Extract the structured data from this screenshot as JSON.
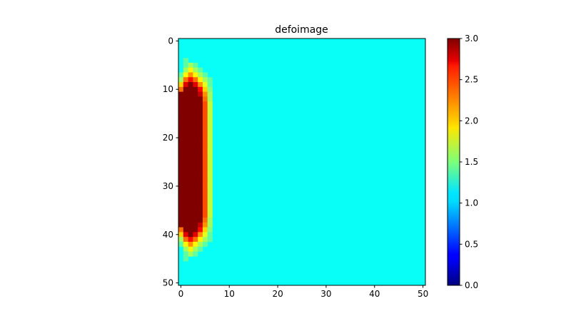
{
  "chart_data": {
    "type": "heatmap",
    "title": "defoimage",
    "xlabel": "",
    "ylabel": "",
    "rows": 51,
    "cols": 51,
    "colormap": "jet",
    "vmin": 0.0,
    "vmax": 3.0,
    "background_value": 1.15,
    "x_ticks": [
      "0",
      "10",
      "20",
      "30",
      "40",
      "50"
    ],
    "y_ticks": [
      "0",
      "10",
      "20",
      "30",
      "40",
      "50"
    ],
    "colorbar_ticks": [
      "0.0",
      "0.5",
      "1.0",
      "1.5",
      "2.0",
      "2.5",
      "3.0"
    ],
    "anomaly_rows": [
      {
        "row": 4,
        "values": [
          1.15,
          1.4,
          1.15
        ]
      },
      {
        "row": 5,
        "values": [
          1.15,
          1.4,
          1.6,
          1.4
        ]
      },
      {
        "row": 6,
        "values": [
          1.15,
          1.6,
          1.9,
          1.6,
          1.4
        ]
      },
      {
        "row": 7,
        "values": [
          1.4,
          1.9,
          2.2,
          1.9,
          1.6,
          1.4
        ]
      },
      {
        "row": 8,
        "values": [
          1.6,
          2.3,
          2.6,
          2.3,
          1.9,
          1.6,
          1.4
        ]
      },
      {
        "row": 9,
        "values": [
          2.0,
          2.7,
          3.0,
          2.7,
          2.2,
          1.8,
          1.4
        ]
      },
      {
        "row": 10,
        "values": [
          2.3,
          3.0,
          3.0,
          3.0,
          2.6,
          2.0,
          1.5
        ]
      },
      {
        "row": 11,
        "values": [
          3.0,
          3.0,
          3.0,
          3.0,
          2.8,
          2.2,
          1.6
        ]
      },
      {
        "row": 12,
        "values": [
          3.0,
          3.0,
          3.0,
          3.0,
          3.0,
          2.3,
          1.6
        ]
      },
      {
        "row": 13,
        "values": [
          3.0,
          3.0,
          3.0,
          3.0,
          3.0,
          2.4,
          1.7
        ]
      },
      {
        "row": 14,
        "values": [
          3.0,
          3.0,
          3.0,
          3.0,
          3.0,
          2.4,
          1.7
        ]
      },
      {
        "row": 15,
        "values": [
          3.0,
          3.0,
          3.0,
          3.0,
          3.0,
          2.4,
          1.7
        ]
      },
      {
        "row": 16,
        "values": [
          3.0,
          3.0,
          3.0,
          3.0,
          3.0,
          2.4,
          1.7
        ]
      },
      {
        "row": 17,
        "values": [
          3.0,
          3.0,
          3.0,
          3.0,
          3.0,
          2.4,
          1.7
        ]
      },
      {
        "row": 18,
        "values": [
          3.0,
          3.0,
          3.0,
          3.0,
          3.0,
          2.4,
          1.7
        ]
      },
      {
        "row": 19,
        "values": [
          3.0,
          3.0,
          3.0,
          3.0,
          3.0,
          2.4,
          1.7
        ]
      },
      {
        "row": 20,
        "values": [
          3.0,
          3.0,
          3.0,
          3.0,
          3.0,
          2.4,
          1.7
        ]
      },
      {
        "row": 21,
        "values": [
          3.0,
          3.0,
          3.0,
          3.0,
          3.0,
          2.4,
          1.7
        ]
      },
      {
        "row": 22,
        "values": [
          3.0,
          3.0,
          3.0,
          3.0,
          3.0,
          2.4,
          1.7
        ]
      },
      {
        "row": 23,
        "values": [
          3.0,
          3.0,
          3.0,
          3.0,
          3.0,
          2.4,
          1.7
        ]
      },
      {
        "row": 24,
        "values": [
          3.0,
          3.0,
          3.0,
          3.0,
          3.0,
          2.4,
          1.7
        ]
      },
      {
        "row": 25,
        "values": [
          3.0,
          3.0,
          3.0,
          3.0,
          3.0,
          2.4,
          1.7
        ]
      },
      {
        "row": 26,
        "values": [
          3.0,
          3.0,
          3.0,
          3.0,
          3.0,
          2.4,
          1.7
        ]
      },
      {
        "row": 27,
        "values": [
          3.0,
          3.0,
          3.0,
          3.0,
          3.0,
          2.4,
          1.7
        ]
      },
      {
        "row": 28,
        "values": [
          3.0,
          3.0,
          3.0,
          3.0,
          3.0,
          2.4,
          1.7
        ]
      },
      {
        "row": 29,
        "values": [
          3.0,
          3.0,
          3.0,
          3.0,
          3.0,
          2.4,
          1.7
        ]
      },
      {
        "row": 30,
        "values": [
          3.0,
          3.0,
          3.0,
          3.0,
          3.0,
          2.4,
          1.7
        ]
      },
      {
        "row": 31,
        "values": [
          3.0,
          3.0,
          3.0,
          3.0,
          3.0,
          2.4,
          1.7
        ]
      },
      {
        "row": 32,
        "values": [
          3.0,
          3.0,
          3.0,
          3.0,
          3.0,
          2.4,
          1.7
        ]
      },
      {
        "row": 33,
        "values": [
          3.0,
          3.0,
          3.0,
          3.0,
          3.0,
          2.4,
          1.7
        ]
      },
      {
        "row": 34,
        "values": [
          3.0,
          3.0,
          3.0,
          3.0,
          3.0,
          2.4,
          1.7
        ]
      },
      {
        "row": 35,
        "values": [
          3.0,
          3.0,
          3.0,
          3.0,
          3.0,
          2.4,
          1.7
        ]
      },
      {
        "row": 36,
        "values": [
          3.0,
          3.0,
          3.0,
          3.0,
          3.0,
          2.4,
          1.7
        ]
      },
      {
        "row": 37,
        "values": [
          3.0,
          3.0,
          3.0,
          3.0,
          3.0,
          2.3,
          1.6
        ]
      },
      {
        "row": 38,
        "values": [
          3.0,
          3.0,
          3.0,
          3.0,
          2.8,
          2.2,
          1.6
        ]
      },
      {
        "row": 39,
        "values": [
          2.3,
          3.0,
          3.0,
          3.0,
          2.6,
          2.0,
          1.5
        ]
      },
      {
        "row": 40,
        "values": [
          2.0,
          2.7,
          3.0,
          2.7,
          2.2,
          1.8,
          1.4
        ]
      },
      {
        "row": 41,
        "values": [
          1.6,
          2.3,
          2.6,
          2.3,
          1.9,
          1.6,
          1.4
        ]
      },
      {
        "row": 42,
        "values": [
          1.4,
          1.9,
          2.2,
          1.9,
          1.6,
          1.4
        ]
      },
      {
        "row": 43,
        "values": [
          1.15,
          1.6,
          1.9,
          1.6,
          1.4
        ]
      },
      {
        "row": 44,
        "values": [
          1.15,
          1.4,
          1.6,
          1.4
        ]
      },
      {
        "row": 45,
        "values": [
          1.15,
          1.4,
          1.15
        ]
      }
    ]
  }
}
